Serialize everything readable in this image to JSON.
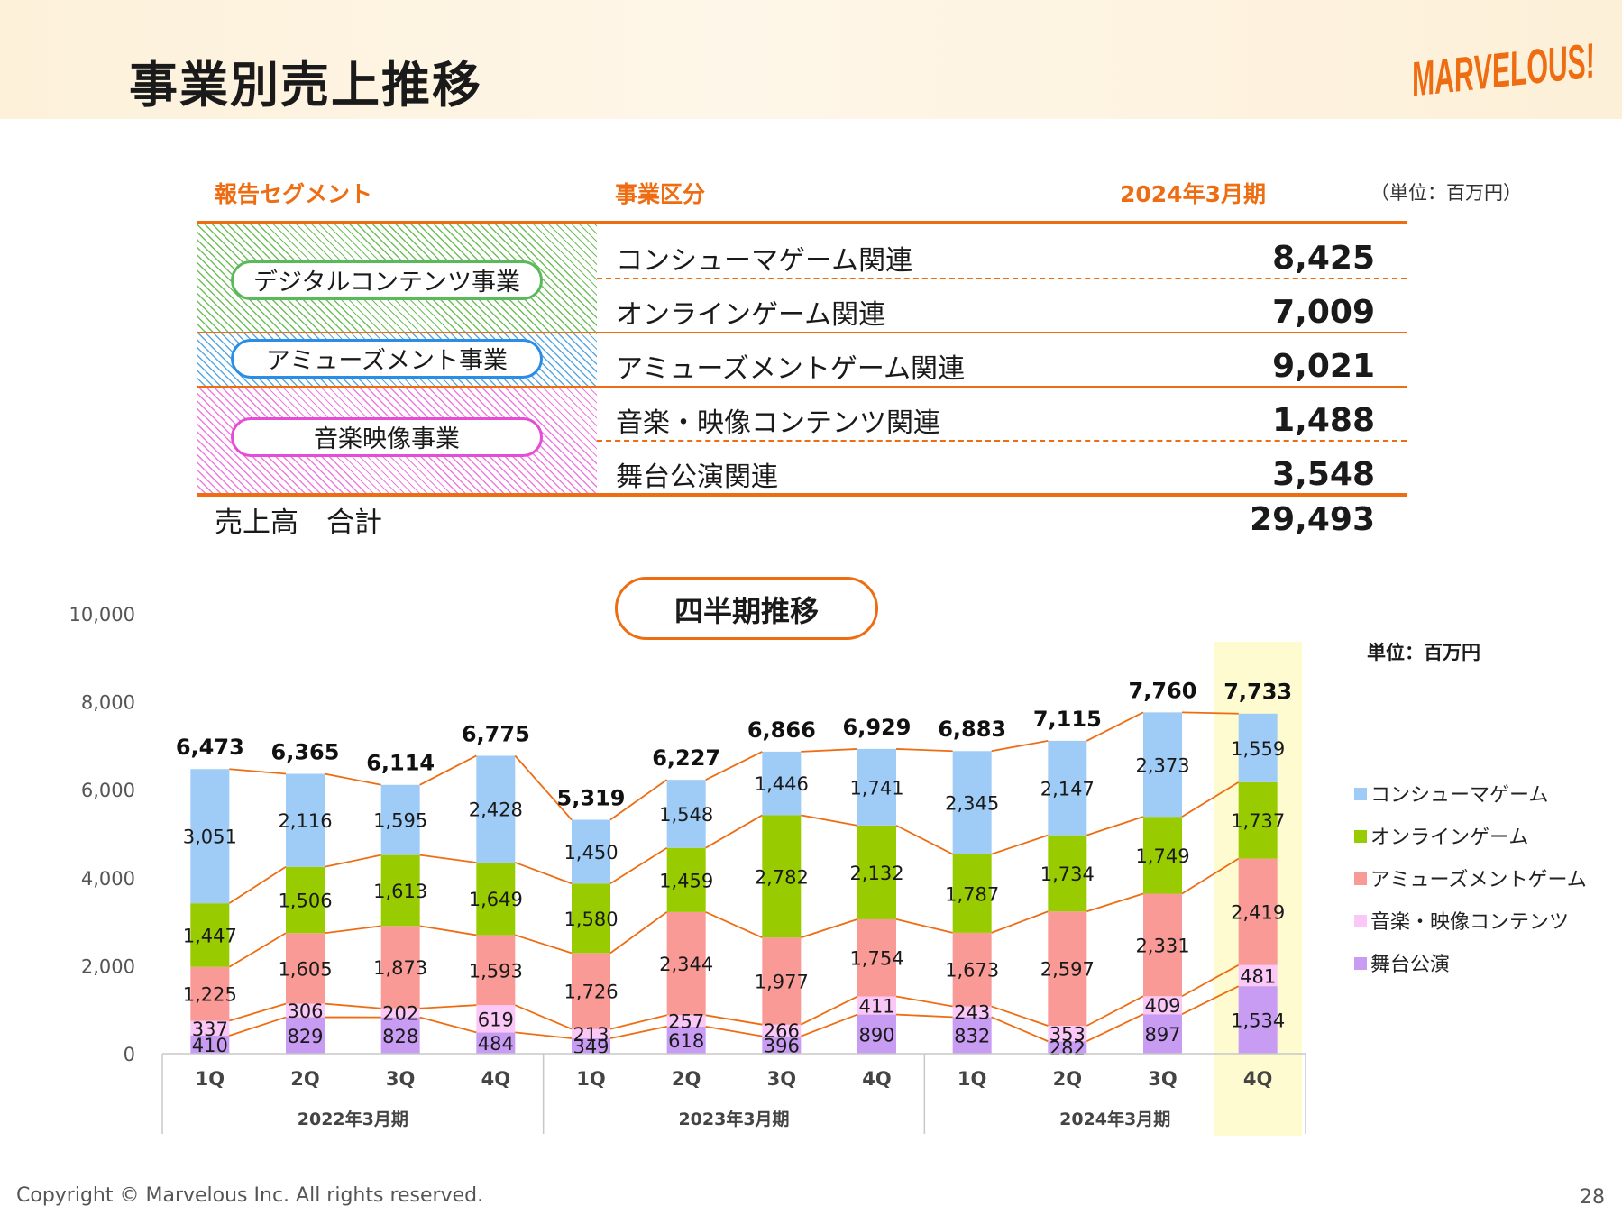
{
  "page": {
    "title": "事業別売上推移",
    "logo_text": "MARVELOUS!",
    "copyright": "Copyright © Marvelous Inc. All rights reserved.",
    "page_number": "28"
  },
  "table": {
    "headers": {
      "segment": "報告セグメント",
      "division": "事業区分",
      "period": "2024年3月期",
      "unit": "（単位：百万円）"
    },
    "segments": [
      {
        "name": "デジタルコンテンツ事業",
        "color": "#5cb85c"
      },
      {
        "name": "アミューズメント事業",
        "color": "#2a8ee6"
      },
      {
        "name": "音楽映像事業",
        "color": "#e64dd6"
      }
    ],
    "rows": [
      {
        "division": "コンシューマゲーム関連",
        "value": "8,425"
      },
      {
        "division": "オンラインゲーム関連",
        "value": "7,009"
      },
      {
        "division": "アミューズメントゲーム関連",
        "value": "9,021"
      },
      {
        "division": "音楽・映像コンテンツ関連",
        "value": "1,488"
      },
      {
        "division": "舞台公演関連",
        "value": "3,548"
      }
    ],
    "total_label": "売上高　合計",
    "total_value": "29,493"
  },
  "chart_section": {
    "badge": "四半期推移",
    "unit": "単位：百万円"
  },
  "chart_data": {
    "type": "bar",
    "stacked": true,
    "ylim": [
      0,
      10000
    ],
    "yticks": [
      "0",
      "2,000",
      "4,000",
      "6,000",
      "8,000",
      "10,000"
    ],
    "categories": [
      "1Q",
      "2Q",
      "3Q",
      "4Q",
      "1Q",
      "2Q",
      "3Q",
      "4Q",
      "1Q",
      "2Q",
      "3Q",
      "4Q"
    ],
    "groups": [
      {
        "label": "2022年3月期",
        "size": 4
      },
      {
        "label": "2023年3月期",
        "size": 4
      },
      {
        "label": "2024年3月期",
        "size": 4
      }
    ],
    "highlight_index": 11,
    "highlight_color": "#fdfbcf",
    "series": [
      {
        "name": "舞台公演",
        "color": "#c79cf2",
        "values": [
          410,
          829,
          828,
          484,
          349,
          618,
          396,
          890,
          832,
          282,
          897,
          1534
        ]
      },
      {
        "name": "音楽・映像コンテンツ",
        "color": "#fbc7f6",
        "values": [
          337,
          306,
          202,
          619,
          213,
          257,
          266,
          411,
          243,
          353,
          409,
          481
        ]
      },
      {
        "name": "アミューズメントゲーム",
        "color": "#f99a96",
        "values": [
          1225,
          1605,
          1873,
          1593,
          1726,
          2344,
          1977,
          1754,
          1673,
          2597,
          2331,
          2419
        ]
      },
      {
        "name": "オンラインゲーム",
        "color": "#99cc00",
        "values": [
          1447,
          1506,
          1613,
          1649,
          1580,
          1459,
          2782,
          2132,
          1787,
          1734,
          1749,
          1737
        ]
      },
      {
        "name": "コンシューマゲーム",
        "color": "#9fccf7",
        "values": [
          3051,
          2116,
          1595,
          2428,
          1450,
          1548,
          1446,
          1741,
          2345,
          2147,
          2373,
          1559
        ]
      }
    ],
    "totals": [
      6473,
      6365,
      6114,
      6775,
      5319,
      6227,
      6866,
      6929,
      6883,
      7115,
      7760,
      7733
    ],
    "legend_order": [
      "コンシューマゲーム",
      "オンラインゲーム",
      "アミューズメントゲーム",
      "音楽・映像コンテンツ",
      "舞台公演"
    ],
    "legend_position": "right",
    "connector_color": "#ee6d12"
  }
}
